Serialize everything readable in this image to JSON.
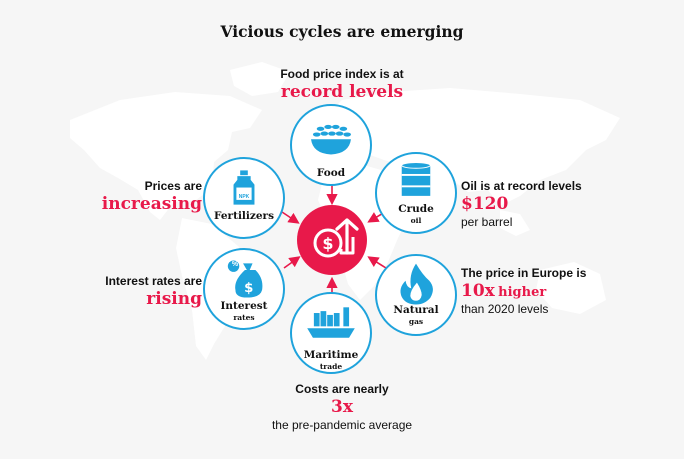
{
  "title": "Vicious cycles are emerging",
  "callouts": {
    "food": {
      "label": "Food price index is at",
      "highlight": "record levels"
    },
    "prices": {
      "label": "Prices are",
      "highlight": "increasing"
    },
    "oil": {
      "label": "Oil is at record levels",
      "highlight": "$120",
      "sub": "per barrel"
    },
    "interest": {
      "label": "Interest rates are",
      "highlight": "rising"
    },
    "gas": {
      "label": "The price in Europe is",
      "highlight": "10x",
      "highlight_small": "higher",
      "sub": "than 2020 levels"
    },
    "trade": {
      "label": "Costs are nearly",
      "highlight": "3x",
      "sub": "the pre-pandemic average"
    }
  },
  "nodes": {
    "food": {
      "name": "Food"
    },
    "fertilizers": {
      "name": "Fertilizers",
      "tag": "NPK"
    },
    "crude": {
      "name": "Crude",
      "sub": "oil"
    },
    "interest": {
      "name": "Interest",
      "sub": "rates",
      "tag": "%"
    },
    "gas": {
      "name": "Natural",
      "sub": "gas"
    },
    "trade": {
      "name": "Maritime",
      "sub": "trade"
    }
  },
  "colors": {
    "accent": "#e8194a",
    "ring": "#1fa3dc",
    "map": "#ffffff",
    "background": "#f6f6f6"
  },
  "icons": {
    "center": "dollar-up-arrow-icon"
  }
}
